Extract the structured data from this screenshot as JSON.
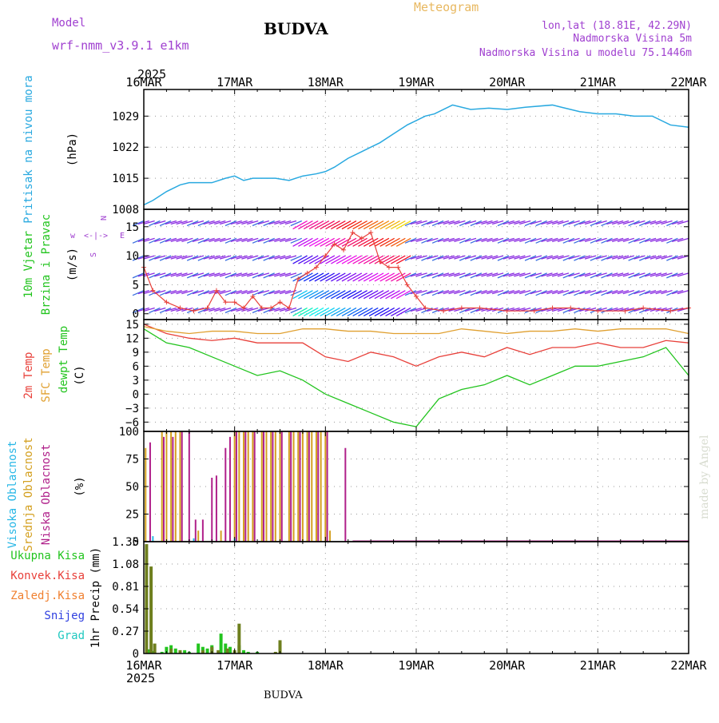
{
  "header": {
    "model_label": "Model",
    "model_name": "wrf-nmm_v3.9.1 e1km",
    "station": "BUDVA",
    "product": "Meteogram",
    "coords": "lon,lat (18.81E, 42.29N)",
    "elevation": "Nadmorska Visina 5m",
    "model_elevation": "Nadmorska Visina u modelu 75.1446m",
    "year_top": "2025",
    "year_bottom": "2025",
    "footer_station": "BUDVA",
    "credit": "made by Angel"
  },
  "colors": {
    "pressure": "#29a9e0",
    "temp2m": "#e8403a",
    "sfc": "#e0a030",
    "dewpt": "#22c41e",
    "cloud_high": "#29b7e6",
    "cloud_mid": "#d4a020",
    "cloud_low": "#b0208a",
    "precip_total": "#22c41e",
    "precip_conv": "#6e7f1e",
    "label_model": "#a040d0",
    "label_meteogram": "#e8b860"
  },
  "x_axis": {
    "ticks": [
      "16MAR",
      "17MAR",
      "18MAR",
      "19MAR",
      "20MAR",
      "21MAR",
      "22MAR"
    ]
  },
  "chart_data": [
    {
      "type": "line",
      "panel": "pressure",
      "ylabel_left": "Pritisak na nivou mora",
      "ylabel_unit": "(hPa)",
      "yticks": [
        1008,
        1015,
        1022,
        1029
      ],
      "ylim": [
        1008,
        1035
      ],
      "x": [
        0,
        0.1,
        0.25,
        0.4,
        0.5,
        0.6,
        0.75,
        0.9,
        1.0,
        1.1,
        1.2,
        1.3,
        1.45,
        1.6,
        1.75,
        1.9,
        2.0,
        2.1,
        2.25,
        2.4,
        2.5,
        2.6,
        2.75,
        2.9,
        3.0,
        3.1,
        3.2,
        3.4,
        3.6,
        3.8,
        4.0,
        4.2,
        4.5,
        4.6,
        4.8,
        5.0,
        5.2,
        5.4,
        5.6,
        5.8,
        6.0
      ],
      "series": [
        {
          "values": [
            1009,
            1010,
            1012,
            1013.5,
            1014,
            1014,
            1014,
            1015,
            1015.5,
            1014.5,
            1015,
            1015,
            1015,
            1014.5,
            1015.5,
            1016,
            1016.5,
            1017.5,
            1019.5,
            1021,
            1022,
            1023,
            1025,
            1027,
            1028,
            1029,
            1029.5,
            1031.5,
            1030.5,
            1030.8,
            1030.5,
            1031,
            1031.5,
            1031,
            1030,
            1029.5,
            1029.5,
            1029,
            1029,
            1027,
            1026.5
          ]
        }
      ]
    },
    {
      "type": "line",
      "panel": "wind",
      "ylabel_left": "10m Vjetar",
      "ylabel_left2": "Brzina i Pravac",
      "ylabel_unit": "(m/s)",
      "compass": {
        "w": "w",
        "e": "E",
        "n": "N",
        "s": "S"
      },
      "yticks": [
        0,
        5,
        10,
        15
      ],
      "ylim": [
        -1,
        18
      ],
      "x": [
        0,
        0.1,
        0.25,
        0.4,
        0.55,
        0.7,
        0.8,
        0.9,
        1.0,
        1.1,
        1.2,
        1.3,
        1.4,
        1.5,
        1.6,
        1.7,
        1.8,
        1.9,
        2.0,
        2.1,
        2.2,
        2.3,
        2.4,
        2.5,
        2.6,
        2.7,
        2.8,
        2.9,
        3.0,
        3.1,
        3.3,
        3.5,
        3.7,
        4.0,
        4.3,
        4.5,
        4.7,
        5.0,
        5.3,
        5.5,
        5.8,
        6.0
      ],
      "series": [
        {
          "values": [
            8,
            4,
            2,
            1,
            0.5,
            1,
            4,
            2,
            2,
            1,
            3,
            1,
            1,
            2,
            1,
            6,
            7,
            8,
            10,
            12,
            11,
            14,
            13,
            14,
            9,
            8,
            8,
            5,
            3,
            1,
            0.5,
            1,
            1,
            0.5,
            0.5,
            1,
            1,
            0.5,
            0.5,
            1,
            0.5,
            1
          ]
        }
      ]
    },
    {
      "type": "line",
      "panel": "temperature",
      "ylabel_left": "2m Temp",
      "ylabel_left2": "SFC Temp",
      "ylabel_left3": "dewpt Temp",
      "ylabel_unit": "(C)",
      "yticks": [
        -6,
        -3,
        0,
        3,
        6,
        9,
        12,
        15
      ],
      "ylim": [
        -8,
        16
      ],
      "x": [
        0,
        0.25,
        0.5,
        0.75,
        1.0,
        1.25,
        1.5,
        1.75,
        2.0,
        2.25,
        2.5,
        2.75,
        3.0,
        3.25,
        3.5,
        3.75,
        4.0,
        4.25,
        4.5,
        4.75,
        5.0,
        5.25,
        5.5,
        5.75,
        6.0
      ],
      "series": [
        {
          "name": "2m Temp",
          "values": [
            15,
            13,
            12,
            11.5,
            12,
            11,
            11,
            11,
            8,
            7,
            9,
            8,
            6,
            8,
            9,
            8,
            10,
            8.5,
            10,
            10,
            11,
            10,
            10,
            11.5,
            11
          ]
        },
        {
          "name": "SFC Temp",
          "values": [
            14.5,
            13.5,
            13,
            13.5,
            13.5,
            13,
            13,
            14,
            14,
            13.5,
            13.5,
            13,
            13,
            13,
            14,
            13.5,
            13,
            13.5,
            13.5,
            14,
            13.5,
            14,
            14,
            14,
            13
          ]
        },
        {
          "name": "dewpt Temp",
          "values": [
            14,
            11,
            10,
            8,
            6,
            4,
            5,
            3,
            0,
            -2,
            -4,
            -6,
            -7,
            -1,
            1,
            2,
            4,
            2,
            4,
            6,
            6,
            7,
            8,
            10,
            4
          ]
        }
      ]
    },
    {
      "type": "bar",
      "panel": "cloud",
      "ylabel_left": "Visoka Oblacnost",
      "ylabel_left2": "Srednja Oblacnost",
      "ylabel_left3": "Niska Oblacnost",
      "ylabel_unit": "(%)",
      "yticks": [
        0,
        25,
        50,
        75,
        100
      ],
      "ylim": [
        0,
        100
      ],
      "series": [
        {
          "name": "Srednja Oblacnost",
          "x": [
            0.02,
            0.2,
            0.25,
            0.3,
            0.35,
            0.4,
            0.6,
            0.85,
            1.0,
            1.05,
            1.1,
            1.15,
            1.2,
            1.3,
            1.35,
            1.4,
            1.45,
            1.5,
            1.6,
            1.65,
            1.7,
            1.75,
            1.8,
            1.85,
            1.9,
            1.95,
            2.0,
            2.05
          ],
          "values": [
            85,
            100,
            100,
            100,
            100,
            100,
            10,
            10,
            100,
            100,
            100,
            100,
            100,
            100,
            100,
            100,
            100,
            100,
            100,
            100,
            100,
            100,
            100,
            100,
            100,
            100,
            100,
            10
          ]
        },
        {
          "name": "Niska Oblacnost",
          "x": [
            0.07,
            0.22,
            0.32,
            0.42,
            0.5,
            0.57,
            0.65,
            0.75,
            0.8,
            0.9,
            0.95,
            1.02,
            1.12,
            1.22,
            1.32,
            1.42,
            1.52,
            1.62,
            1.72,
            1.82,
            1.92,
            2.02,
            2.22
          ],
          "values": [
            90,
            95,
            95,
            100,
            100,
            20,
            20,
            58,
            60,
            85,
            95,
            100,
            100,
            100,
            100,
            100,
            100,
            100,
            100,
            100,
            100,
            100,
            85
          ]
        },
        {
          "name": "Visoka Oblacnost",
          "x": [
            0.1,
            0.55,
            1.0
          ],
          "values": [
            5,
            3,
            3
          ]
        }
      ]
    },
    {
      "type": "bar",
      "panel": "precip",
      "ylabel_unit": "1hr Precip (mm)",
      "legend": [
        "Ukupna Kisa",
        "Konvek.Kisa",
        "Zaledj.Kisa",
        "Snijeg",
        "Grad"
      ],
      "yticks": [
        0,
        0.27,
        0.54,
        0.81,
        1.08,
        1.35
      ],
      "ylim": [
        0,
        1.35
      ],
      "series": [
        {
          "name": "Ukupna Kisa",
          "x": [
            0.05,
            0.1,
            0.2,
            0.25,
            0.3,
            0.35,
            0.45,
            0.5,
            0.6,
            0.65,
            0.7,
            0.75,
            0.85,
            0.9,
            0.95,
            1.05,
            1.1,
            1.15,
            1.25,
            1.5
          ],
          "values": [
            0.05,
            0.03,
            0.02,
            0.08,
            0.1,
            0.06,
            0.04,
            0.02,
            0.12,
            0.08,
            0.06,
            0.1,
            0.24,
            0.12,
            0.08,
            0.1,
            0.04,
            0.02,
            0.02,
            0.04
          ]
        },
        {
          "name": "Konvek.Kisa",
          "x": [
            0.03,
            0.08,
            0.12,
            0.3,
            0.4,
            0.65,
            0.75,
            0.82,
            0.92,
            1.0,
            1.05,
            1.45,
            1.5
          ],
          "values": [
            1.32,
            1.05,
            0.12,
            0.06,
            0.04,
            0.04,
            0.08,
            0.04,
            0.06,
            0.04,
            0.36,
            0.02,
            0.16
          ]
        }
      ]
    }
  ]
}
